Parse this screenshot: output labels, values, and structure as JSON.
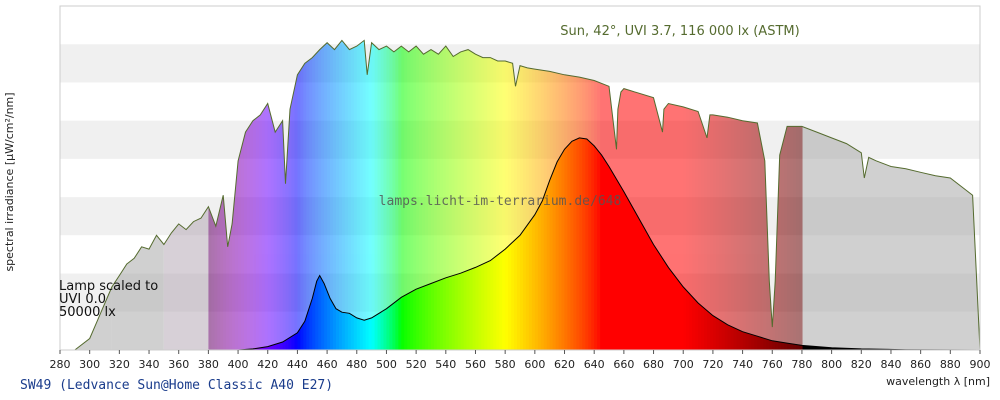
{
  "chart_data": {
    "type": "area",
    "xlabel": "wavelength λ [nm]",
    "ylabel": "spectral irradiance [µW/cm²/nm]",
    "xlim": [
      280,
      900
    ],
    "x_ticks": [
      280,
      300,
      320,
      340,
      360,
      380,
      400,
      420,
      440,
      460,
      480,
      500,
      520,
      540,
      560,
      580,
      600,
      620,
      640,
      660,
      680,
      700,
      720,
      740,
      760,
      780,
      800,
      820,
      840,
      860,
      880,
      900
    ],
    "y_ticks_labeled": false,
    "grid": "horizontal bands",
    "uv_band_edges": [
      315,
      350,
      380
    ],
    "visible_range": [
      380,
      780
    ],
    "sun_label": "Sun, 42°, UVI 3.7, 116 000 lx (ASTM)",
    "lamp_label_lines": [
      "Lamp scaled to",
      "UVI 0.0",
      "50000 lx"
    ],
    "watermark": "lamps.licht-im-terrarium.de/648",
    "footer": "SW49 (Ledvance Sun@Home Classic A40 E27)",
    "colors": {
      "sun_outline": "#556b2f",
      "lamp_outline": "#000000",
      "uv_fill": "#a9a9a9",
      "ir_fill": "#a9a9a9",
      "band_shade": "#f0f0f0",
      "text_green": "#556b2f",
      "footer_text": "#1a3c8c"
    },
    "series": [
      {
        "role": "sun",
        "x": [
          290,
          300,
          305,
          310,
          315,
          320,
          325,
          330,
          335,
          340,
          345,
          350,
          355,
          360,
          365,
          370,
          375,
          380,
          385,
          390,
          393,
          396,
          400,
          405,
          410,
          415,
          420,
          425,
          430,
          432,
          435,
          440,
          445,
          450,
          455,
          460,
          465,
          470,
          475,
          480,
          485,
          487,
          490,
          495,
          500,
          505,
          510,
          515,
          520,
          525,
          530,
          535,
          540,
          545,
          550,
          555,
          560,
          565,
          570,
          575,
          580,
          585,
          587,
          590,
          595,
          600,
          610,
          620,
          630,
          640,
          650,
          655,
          656,
          658,
          660,
          665,
          680,
          686,
          687,
          690,
          700,
          710,
          716,
          718,
          720,
          730,
          740,
          750,
          755,
          758,
          760,
          762,
          765,
          770,
          780,
          790,
          800,
          810,
          820,
          822,
          825,
          830,
          840,
          850,
          860,
          870,
          880,
          890,
          895,
          900
        ],
        "values": [
          0,
          10,
          25,
          40,
          55,
          65,
          75,
          80,
          90,
          88,
          100,
          92,
          102,
          110,
          105,
          112,
          115,
          125,
          108,
          135,
          90,
          110,
          165,
          190,
          200,
          205,
          215,
          190,
          200,
          145,
          210,
          240,
          250,
          255,
          262,
          268,
          262,
          270,
          262,
          265,
          270,
          240,
          268,
          262,
          265,
          260,
          265,
          260,
          265,
          258,
          262,
          258,
          265,
          256,
          260,
          262,
          258,
          255,
          255,
          252,
          252,
          250,
          230,
          248,
          246,
          245,
          243,
          240,
          238,
          235,
          230,
          175,
          210,
          225,
          228,
          226,
          220,
          190,
          210,
          215,
          212,
          208,
          185,
          205,
          205,
          203,
          200,
          198,
          165,
          60,
          20,
          60,
          170,
          195,
          195,
          190,
          185,
          180,
          172,
          150,
          168,
          165,
          160,
          158,
          155,
          152,
          150,
          140,
          135,
          0
        ]
      },
      {
        "role": "lamp",
        "x": [
          400,
          410,
          420,
          430,
          440,
          445,
          450,
          453,
          455,
          458,
          462,
          466,
          470,
          475,
          480,
          485,
          490,
          500,
          510,
          520,
          530,
          540,
          550,
          560,
          570,
          580,
          590,
          600,
          605,
          610,
          615,
          620,
          625,
          630,
          635,
          640,
          645,
          650,
          660,
          670,
          680,
          690,
          700,
          710,
          720,
          730,
          740,
          750,
          760,
          770,
          780,
          800,
          820,
          850,
          900
        ],
        "values": [
          0,
          1,
          3,
          7,
          15,
          25,
          45,
          60,
          65,
          58,
          45,
          36,
          33,
          32,
          28,
          26,
          28,
          36,
          46,
          53,
          58,
          63,
          67,
          72,
          78,
          88,
          100,
          118,
          130,
          148,
          164,
          175,
          182,
          185,
          184,
          178,
          170,
          160,
          138,
          115,
          92,
          72,
          55,
          41,
          30,
          22,
          16,
          12,
          8,
          6,
          4,
          2,
          1,
          0.3,
          0
        ]
      }
    ]
  }
}
